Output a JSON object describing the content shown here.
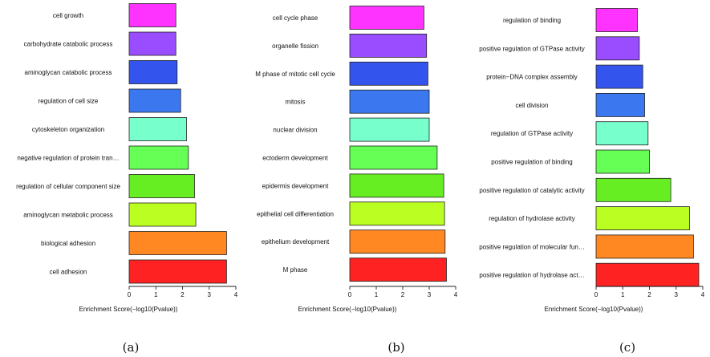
{
  "chart_data": [
    {
      "type": "bar",
      "orientation": "horizontal",
      "panel_label": "(a)",
      "xlabel": "Enrichment Score(−log10(Pvalue))",
      "xlim": [
        0,
        4
      ],
      "ticks": [
        0,
        1,
        2,
        3,
        4
      ],
      "categories": [
        "cell growth",
        "carbohydrate catabolic process",
        "aminoglycan catabolic process",
        "regulation of cell size",
        "cytoskeleton organization",
        "negative regulation of protein tran…",
        "regulation of cellular component size",
        "aminoglycan metabolic process",
        "biological adhesion",
        "cell adhesion"
      ],
      "values": [
        1.75,
        1.75,
        1.8,
        1.93,
        2.15,
        2.22,
        2.45,
        2.5,
        3.65,
        3.65
      ],
      "colors": [
        "#ff33ff",
        "#9a4dff",
        "#3355ee",
        "#3b78f0",
        "#77ffcc",
        "#66ff55",
        "#66ee22",
        "#bbff22",
        "#ff8822",
        "#ff2222"
      ]
    },
    {
      "type": "bar",
      "orientation": "horizontal",
      "panel_label": "(b)",
      "xlabel": "Enrichment Score(−log10(Pvalue))",
      "xlim": [
        0,
        4
      ],
      "ticks": [
        0,
        1,
        2,
        3,
        4
      ],
      "categories": [
        "cell cycle phase",
        "organelle fission",
        "M phase of mitotic cell cycle",
        "mitosis",
        "nuclear division",
        "ectoderm development",
        "epidermis development",
        "epithelial cell differentiation",
        "epithelium development",
        "M phase"
      ],
      "values": [
        2.8,
        2.9,
        2.95,
        3.0,
        3.0,
        3.3,
        3.55,
        3.58,
        3.6,
        3.65
      ],
      "colors": [
        "#ff33ff",
        "#9a4dff",
        "#3355ee",
        "#3b78f0",
        "#77ffcc",
        "#66ff55",
        "#66ee22",
        "#bbff22",
        "#ff8822",
        "#ff2222"
      ]
    },
    {
      "type": "bar",
      "orientation": "horizontal",
      "panel_label": "(c)",
      "xlabel": "Enrichment Score(−log10(Pvalue))",
      "xlim": [
        0,
        4
      ],
      "ticks": [
        0,
        1,
        2,
        3,
        4
      ],
      "categories": [
        "regulation of binding",
        "positive regulation of GTPase activity",
        "protein−DNA complex assembly",
        "cell division",
        "regulation of GTPase activity",
        "positive regulation of binding",
        "positive regulation of catalytic activity",
        "regulation of hydrolase activity",
        "positive regulation of molecular fun…",
        "positive regulation of hydrolase act…"
      ],
      "values": [
        1.55,
        1.62,
        1.75,
        1.82,
        1.95,
        2.0,
        2.8,
        3.5,
        3.65,
        3.85
      ],
      "colors": [
        "#ff33ff",
        "#9a4dff",
        "#3355ee",
        "#3b78f0",
        "#77ffcc",
        "#66ff55",
        "#66ee22",
        "#bbff22",
        "#ff8822",
        "#ff2222"
      ]
    }
  ]
}
